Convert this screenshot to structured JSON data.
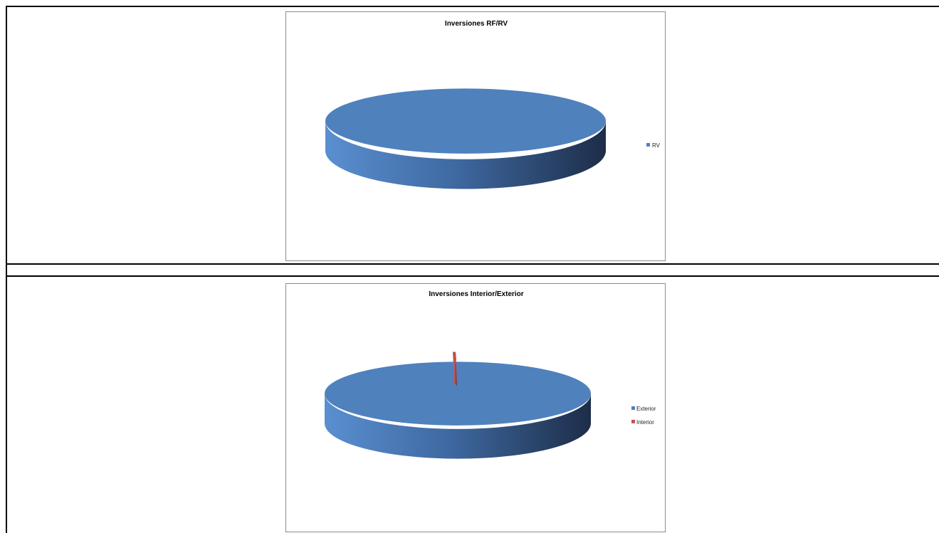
{
  "chart_data": [
    {
      "type": "pie",
      "title": "Inversiones RF/RV",
      "categories": [
        "RV"
      ],
      "values": [
        100
      ],
      "colors": [
        "#4f81bd"
      ],
      "legend": {
        "placement": "right",
        "entries": [
          "RV"
        ]
      },
      "style": "3d"
    },
    {
      "type": "pie",
      "title": "Inversiones Interior/Exterior",
      "categories": [
        "Exterior",
        "Interior"
      ],
      "values": [
        99.2,
        0.8
      ],
      "colors": [
        "#4f81bd",
        "#c0504d"
      ],
      "legend": {
        "placement": "right",
        "entries": [
          "Exterior",
          "Interior"
        ]
      },
      "style": "3d"
    }
  ]
}
